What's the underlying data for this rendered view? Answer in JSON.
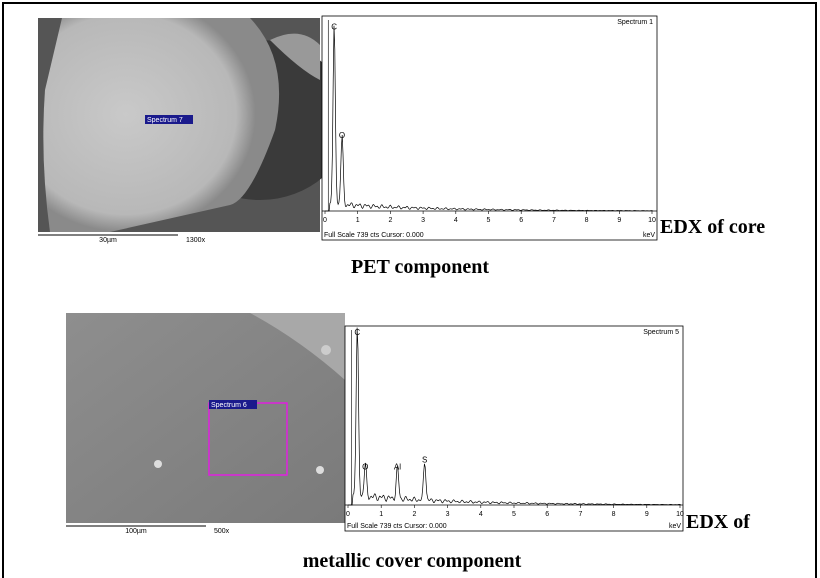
{
  "panels": [
    {
      "image": {
        "label": "Spectrum 7",
        "scale_bar": "30µm",
        "magnification": "1300x"
      },
      "spectrum": {
        "title": "Spectrum 1",
        "peaks": [
          "C",
          "O"
        ],
        "axis_labels": [
          "0",
          "1",
          "2",
          "3",
          "4",
          "5",
          "6",
          "7",
          "8",
          "9",
          "10"
        ],
        "unit": "keV",
        "footer": "Full Scale 739 cts Cursor: 0.000"
      },
      "caption": [
        "EDX of core",
        "PET component"
      ]
    },
    {
      "image": {
        "label": "Spectrum 6",
        "scale_bar": "100µm",
        "magnification": "500x"
      },
      "spectrum": {
        "title": "Spectrum 5",
        "peaks": [
          "C",
          "O",
          "Al",
          "S"
        ],
        "axis_labels": [
          "0",
          "1",
          "2",
          "3",
          "4",
          "5",
          "6",
          "7",
          "8",
          "9",
          "10"
        ],
        "unit": "keV",
        "footer": "Full Scale 739 cts Cursor: 0.000"
      },
      "caption": [
        "EDX of",
        "metallic cover component"
      ]
    }
  ]
}
